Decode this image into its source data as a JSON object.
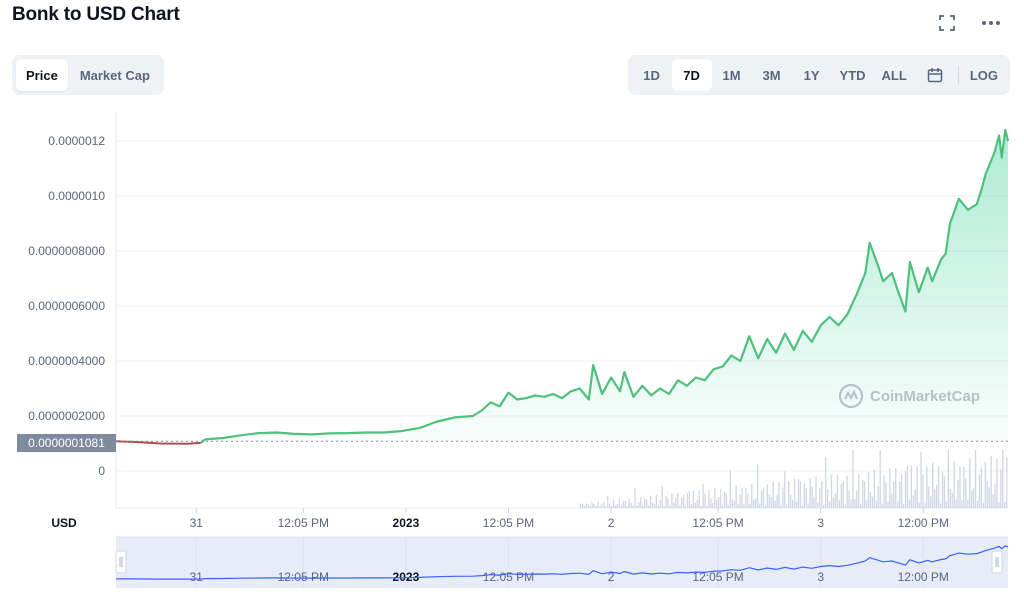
{
  "header": {
    "title": "Bonk to USD Chart",
    "icons": [
      "fullscreen-icon",
      "more-icon"
    ]
  },
  "toggle": {
    "options": [
      "Price",
      "Market Cap"
    ],
    "selected": "Price"
  },
  "ranges": {
    "options": [
      "1D",
      "7D",
      "1M",
      "3M",
      "1Y",
      "YTD",
      "ALL"
    ],
    "selected": "7D",
    "calendar_icon": "calendar-icon",
    "log_label": "LOG"
  },
  "watermark": "CoinMarketCap",
  "price_tag": "0.0000001081",
  "currency_label": "USD",
  "colors": {
    "up": "#16c784",
    "line_up": "#4fbf7c",
    "line_down": "#b04c4c",
    "navigator": "#3861fb",
    "volume": "#cfd6e4"
  },
  "chart_data": {
    "type": "line",
    "series": [
      {
        "values": [
          [
            0.0,
            1.08e-07
          ],
          [
            0.02,
            1.06e-07
          ],
          [
            0.05,
            1e-07
          ],
          [
            0.08,
            9.9e-08
          ],
          [
            0.095,
            1.02e-07
          ],
          [
            0.1,
            1.15e-07
          ],
          [
            0.12,
            1.2e-07
          ],
          [
            0.14,
            1.3e-07
          ],
          [
            0.16,
            1.38e-07
          ],
          [
            0.18,
            1.4e-07
          ],
          [
            0.2,
            1.35e-07
          ],
          [
            0.22,
            1.33e-07
          ],
          [
            0.24,
            1.37e-07
          ],
          [
            0.26,
            1.38e-07
          ],
          [
            0.28,
            1.4e-07
          ],
          [
            0.3,
            1.4e-07
          ],
          [
            0.32,
            1.45e-07
          ],
          [
            0.34,
            1.56e-07
          ],
          [
            0.36,
            1.8e-07
          ],
          [
            0.38,
            1.95e-07
          ],
          [
            0.4,
            2e-07
          ],
          [
            0.41,
            2.2e-07
          ],
          [
            0.42,
            2.5e-07
          ],
          [
            0.43,
            2.35e-07
          ],
          [
            0.44,
            2.85e-07
          ],
          [
            0.45,
            2.6e-07
          ],
          [
            0.46,
            2.65e-07
          ],
          [
            0.47,
            2.75e-07
          ],
          [
            0.48,
            2.7e-07
          ],
          [
            0.49,
            2.8e-07
          ],
          [
            0.5,
            2.65e-07
          ],
          [
            0.51,
            2.9e-07
          ],
          [
            0.52,
            3e-07
          ],
          [
            0.53,
            2.6e-07
          ],
          [
            0.535,
            3.85e-07
          ],
          [
            0.545,
            2.8e-07
          ],
          [
            0.555,
            3.4e-07
          ],
          [
            0.565,
            2.9e-07
          ],
          [
            0.57,
            3.6e-07
          ],
          [
            0.58,
            2.7e-07
          ],
          [
            0.59,
            3.1e-07
          ],
          [
            0.6,
            2.75e-07
          ],
          [
            0.61,
            3e-07
          ],
          [
            0.62,
            2.8e-07
          ],
          [
            0.63,
            3.3e-07
          ],
          [
            0.64,
            3.1e-07
          ],
          [
            0.65,
            3.4e-07
          ],
          [
            0.66,
            3.3e-07
          ],
          [
            0.67,
            3.7e-07
          ],
          [
            0.68,
            3.8e-07
          ],
          [
            0.69,
            4.2e-07
          ],
          [
            0.7,
            4e-07
          ],
          [
            0.71,
            4.9e-07
          ],
          [
            0.72,
            4.1e-07
          ],
          [
            0.73,
            4.8e-07
          ],
          [
            0.74,
            4.3e-07
          ],
          [
            0.75,
            5e-07
          ],
          [
            0.76,
            4.4e-07
          ],
          [
            0.77,
            5.1e-07
          ],
          [
            0.78,
            4.7e-07
          ],
          [
            0.79,
            5.3e-07
          ],
          [
            0.8,
            5.6e-07
          ],
          [
            0.81,
            5.3e-07
          ],
          [
            0.82,
            5.7e-07
          ],
          [
            0.83,
            6.4e-07
          ],
          [
            0.84,
            7.2e-07
          ],
          [
            0.845,
            8.3e-07
          ],
          [
            0.855,
            7.4e-07
          ],
          [
            0.86,
            6.9e-07
          ],
          [
            0.87,
            7.2e-07
          ],
          [
            0.875,
            6.7e-07
          ],
          [
            0.885,
            5.8e-07
          ],
          [
            0.89,
            7.6e-07
          ],
          [
            0.9,
            6.5e-07
          ],
          [
            0.91,
            7.4e-07
          ],
          [
            0.915,
            6.9e-07
          ],
          [
            0.925,
            7.7e-07
          ],
          [
            0.93,
            7.9e-07
          ],
          [
            0.935,
            9e-07
          ],
          [
            0.945,
            9.9e-07
          ],
          [
            0.955,
            9.5e-07
          ],
          [
            0.965,
            9.7e-07
          ],
          [
            0.97,
            1.02e-06
          ],
          [
            0.975,
            1.08e-06
          ],
          [
            0.98,
            1.12e-06
          ],
          [
            0.985,
            1.16e-06
          ],
          [
            0.99,
            1.22e-06
          ],
          [
            0.993,
            1.14e-06
          ],
          [
            0.997,
            1.24e-06
          ],
          [
            1.0,
            1.2e-06
          ]
        ]
      }
    ],
    "y_ticks": [
      "0.0000012",
      "0.0000010",
      "0.0000008000",
      "0.0000006000",
      "0.0000004000",
      "0.0000002000",
      "0"
    ],
    "y_tick_values": [
      1.2e-06,
      1e-06,
      8e-07,
      6e-07,
      4e-07,
      2e-07,
      0
    ],
    "x_ticks": [
      {
        "label": "31",
        "pos": 0.09,
        "bold": false
      },
      {
        "label": "12:05 PM",
        "pos": 0.21,
        "bold": false
      },
      {
        "label": "2023",
        "pos": 0.325,
        "bold": true
      },
      {
        "label": "12:05 PM",
        "pos": 0.44,
        "bold": false
      },
      {
        "label": "2",
        "pos": 0.555,
        "bold": false
      },
      {
        "label": "12:05 PM",
        "pos": 0.675,
        "bold": false
      },
      {
        "label": "3",
        "pos": 0.79,
        "bold": false
      },
      {
        "label": "12:00 PM",
        "pos": 0.905,
        "bold": false
      }
    ],
    "ylim": [
      0,
      1.3e-06
    ],
    "grid": true,
    "reference_price": 1.081e-07
  }
}
